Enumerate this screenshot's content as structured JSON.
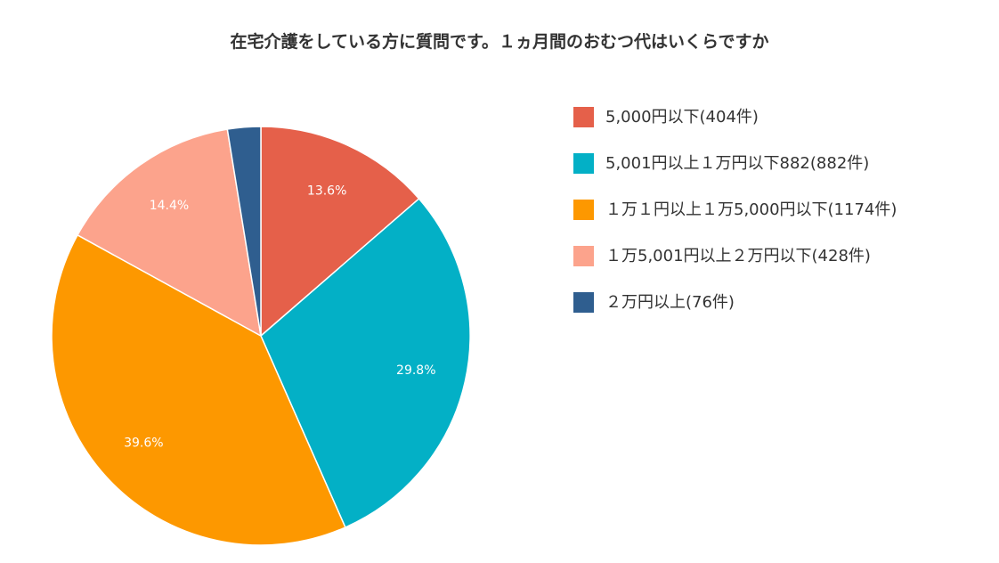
{
  "chart_data": {
    "type": "pie",
    "title": "在宅介護をしている方に質問です。１ヵ月間のおむつ代はいくらですか",
    "legend_position": "right",
    "slices": [
      {
        "label": "5,000円以下(404件)",
        "value": 404,
        "percent_label": "13.6%",
        "color": "#e5604a"
      },
      {
        "label": "5,001円以上１万円以下882(882件)",
        "value": 882,
        "percent_label": "29.8%",
        "color": "#03b0c6"
      },
      {
        "label": "１万１円以上１万5,000円以下(1174件)",
        "value": 1174,
        "percent_label": "39.6%",
        "color": "#fd9800"
      },
      {
        "label": "１万5,001円以上２万円以下(428件)",
        "value": 428,
        "percent_label": "14.4%",
        "color": "#fca38c"
      },
      {
        "label": "２万円以上(76件)",
        "value": 76,
        "percent_label": "",
        "color": "#2f5e8f"
      }
    ]
  }
}
